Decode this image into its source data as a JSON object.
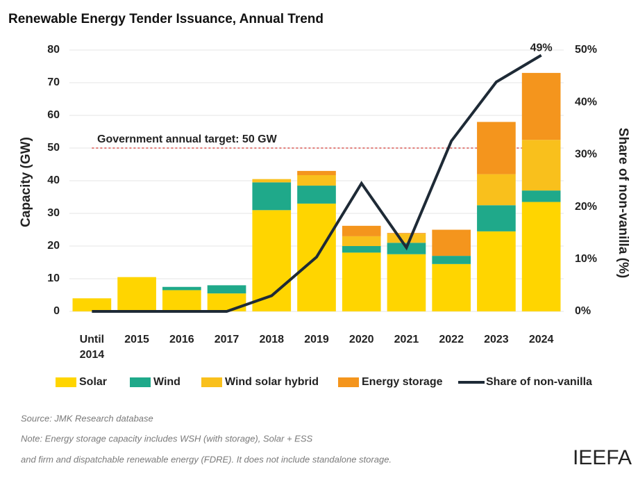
{
  "chart_data": {
    "type": "bar",
    "title": "Renewable Energy Tender Issuance, Annual Trend",
    "y_label": "Capacity (GW)",
    "y2_label": "Share of non-vanilla (%)",
    "categories": [
      "Until 2014",
      "2015",
      "2016",
      "2017",
      "2018",
      "2019",
      "2020",
      "2021",
      "2022",
      "2023",
      "2024"
    ],
    "stacked": true,
    "series": [
      {
        "name": "Solar",
        "color": "#ffd500",
        "values": [
          4,
          10.5,
          6.5,
          5.5,
          31,
          33,
          18,
          17.5,
          14.5,
          24.5,
          33.5
        ]
      },
      {
        "name": "Wind",
        "color": "#1fa98a",
        "values": [
          0,
          0,
          1,
          2.5,
          8.5,
          5.5,
          2,
          3.5,
          2.5,
          8,
          3.5
        ]
      },
      {
        "name": "Wind solar hybrid",
        "color": "#f9c01c",
        "values": [
          0,
          0,
          0,
          0,
          1,
          3.2,
          3,
          2.8,
          0,
          9.5,
          15.5
        ]
      },
      {
        "name": "Energy storage",
        "color": "#f4951d",
        "values": [
          0,
          0,
          0,
          0,
          0,
          1.3,
          3.2,
          0.2,
          8,
          16,
          20.5
        ]
      },
      {
        "name": "Share of non-vanilla",
        "color": "#1e2a36",
        "type": "line",
        "axis": "y2",
        "values": [
          0,
          0,
          0,
          0,
          3,
          10.4,
          24.5,
          12.2,
          32.6,
          43.9,
          49
        ],
        "value_labels": [
          null,
          null,
          null,
          null,
          null,
          null,
          null,
          null,
          null,
          null,
          "49%"
        ]
      }
    ],
    "ylim": [
      0,
      80
    ],
    "yticks": [
      0,
      10,
      20,
      30,
      40,
      50,
      60,
      70,
      80
    ],
    "y2lim": [
      0,
      50
    ],
    "y2ticks": [
      {
        "value": 0,
        "label": "0%"
      },
      {
        "value": 10,
        "label": "10%"
      },
      {
        "value": 20,
        "label": "20%"
      },
      {
        "value": 30,
        "label": "30%"
      },
      {
        "value": 40,
        "label": "40%"
      },
      {
        "value": 50,
        "label": "50%"
      }
    ],
    "grid": true,
    "target": {
      "value": 50,
      "label": "Government annual target: 50 GW",
      "color": "#d9534f"
    },
    "legend": "bottom",
    "source": "Source: JMK Research database",
    "notes": [
      "Note: Energy storage capacity includes WSH (with storage), Solar + ESS",
      "and firm and dispatchable renewable energy (FDRE). It does not include standalone storage."
    ],
    "logo": "IEEFA"
  }
}
